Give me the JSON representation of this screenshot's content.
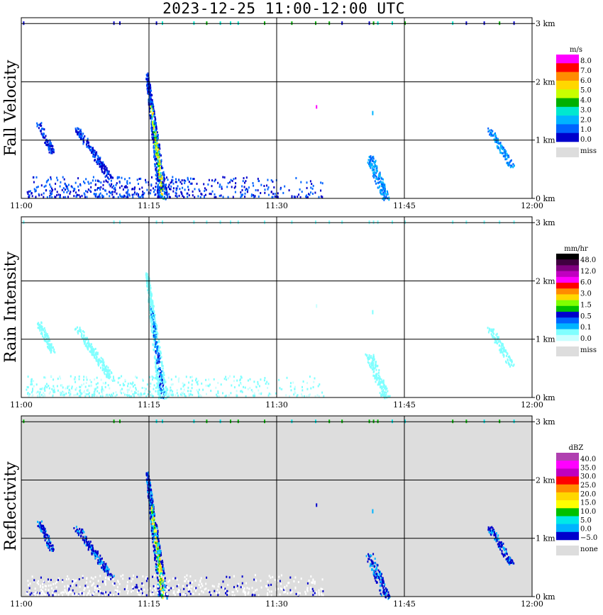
{
  "chart_data": {
    "type": "heatmap",
    "title": "2023-12-25  11:00-12:00 UTC",
    "x_ticks": [
      "11:00",
      "11:15",
      "11:30",
      "11:45",
      "12:00"
    ],
    "y_ticks": [
      "0 km",
      "1 km",
      "2 km",
      "3 km"
    ],
    "xlim_minutes": [
      0,
      60
    ],
    "ylim_km": [
      0,
      3.1
    ],
    "panels": [
      {
        "name": "fall-velocity",
        "ylabel": "Fall Velocity",
        "unit": "m/s",
        "background": "#ffffff",
        "legend": {
          "colors": [
            "#ff00ff",
            "#ff0000",
            "#ff8c00",
            "#ffd700",
            "#c8ff00",
            "#00b000",
            "#00e8d0",
            "#00b4ff",
            "#0064ff",
            "#0000cc"
          ],
          "labels": [
            "8.0",
            "7.0",
            "6.0",
            "5.0",
            "4.0",
            "3.0",
            "2.0",
            "1.0",
            "0.0"
          ],
          "missing_color": "#dddddd",
          "missing_label": "miss"
        }
      },
      {
        "name": "rain-intensity",
        "ylabel": "Rain Intensity",
        "unit": "mm/hr",
        "background": "#ffffff",
        "legend": {
          "colors": [
            "#000000",
            "#400040",
            "#800080",
            "#c000c0",
            "#ff00ff",
            "#ff0000",
            "#ff8c00",
            "#ffd700",
            "#80ff00",
            "#00c000",
            "#0000cc",
            "#0064ff",
            "#00b4ff",
            "#80ffff",
            "#c8ffff"
          ],
          "labels": [
            "48.0",
            "12.0",
            "6.0",
            "3.0",
            "1.5",
            "0.5",
            "0.1",
            "0.0"
          ],
          "missing_color": "#dddddd",
          "missing_label": "miss"
        }
      },
      {
        "name": "reflectivity",
        "ylabel": "Reflectivity",
        "unit": "dBZ",
        "background": "#dddddd",
        "legend": {
          "colors": [
            "#b040b0",
            "#ff00ff",
            "#c000c0",
            "#ff0000",
            "#ff8c00",
            "#ffd700",
            "#ffff00",
            "#00c000",
            "#00e8e8",
            "#00b4ff",
            "#0000cc"
          ],
          "labels": [
            "40.0",
            "35.0",
            "30.0",
            "25.0",
            "20.0",
            "15.0",
            "10.0",
            "5.0",
            "0.0",
            "−5.0"
          ],
          "missing_color": "#dddddd",
          "missing_label": "none"
        }
      }
    ],
    "features": [
      {
        "name": "early-shaft-1",
        "t": [
          2.0,
          3.6
        ],
        "h": [
          1.3,
          0.8
        ]
      },
      {
        "name": "early-shaft-2",
        "t": [
          6.5,
          10.5
        ],
        "h": [
          1.2,
          0.35
        ]
      },
      {
        "name": "main-shaft",
        "t": [
          14.7,
          16.6
        ],
        "h": [
          2.15,
          0.0
        ]
      },
      {
        "name": "shaft-1140",
        "t": [
          40.8,
          42.8
        ],
        "h": [
          0.75,
          0.0
        ]
      },
      {
        "name": "shaft-1155",
        "t": [
          55.0,
          57.6
        ],
        "h": [
          1.2,
          0.55
        ]
      },
      {
        "name": "near-surface-band",
        "t": [
          0.5,
          35.5
        ],
        "h": [
          0.0,
          0.35
        ]
      }
    ]
  }
}
